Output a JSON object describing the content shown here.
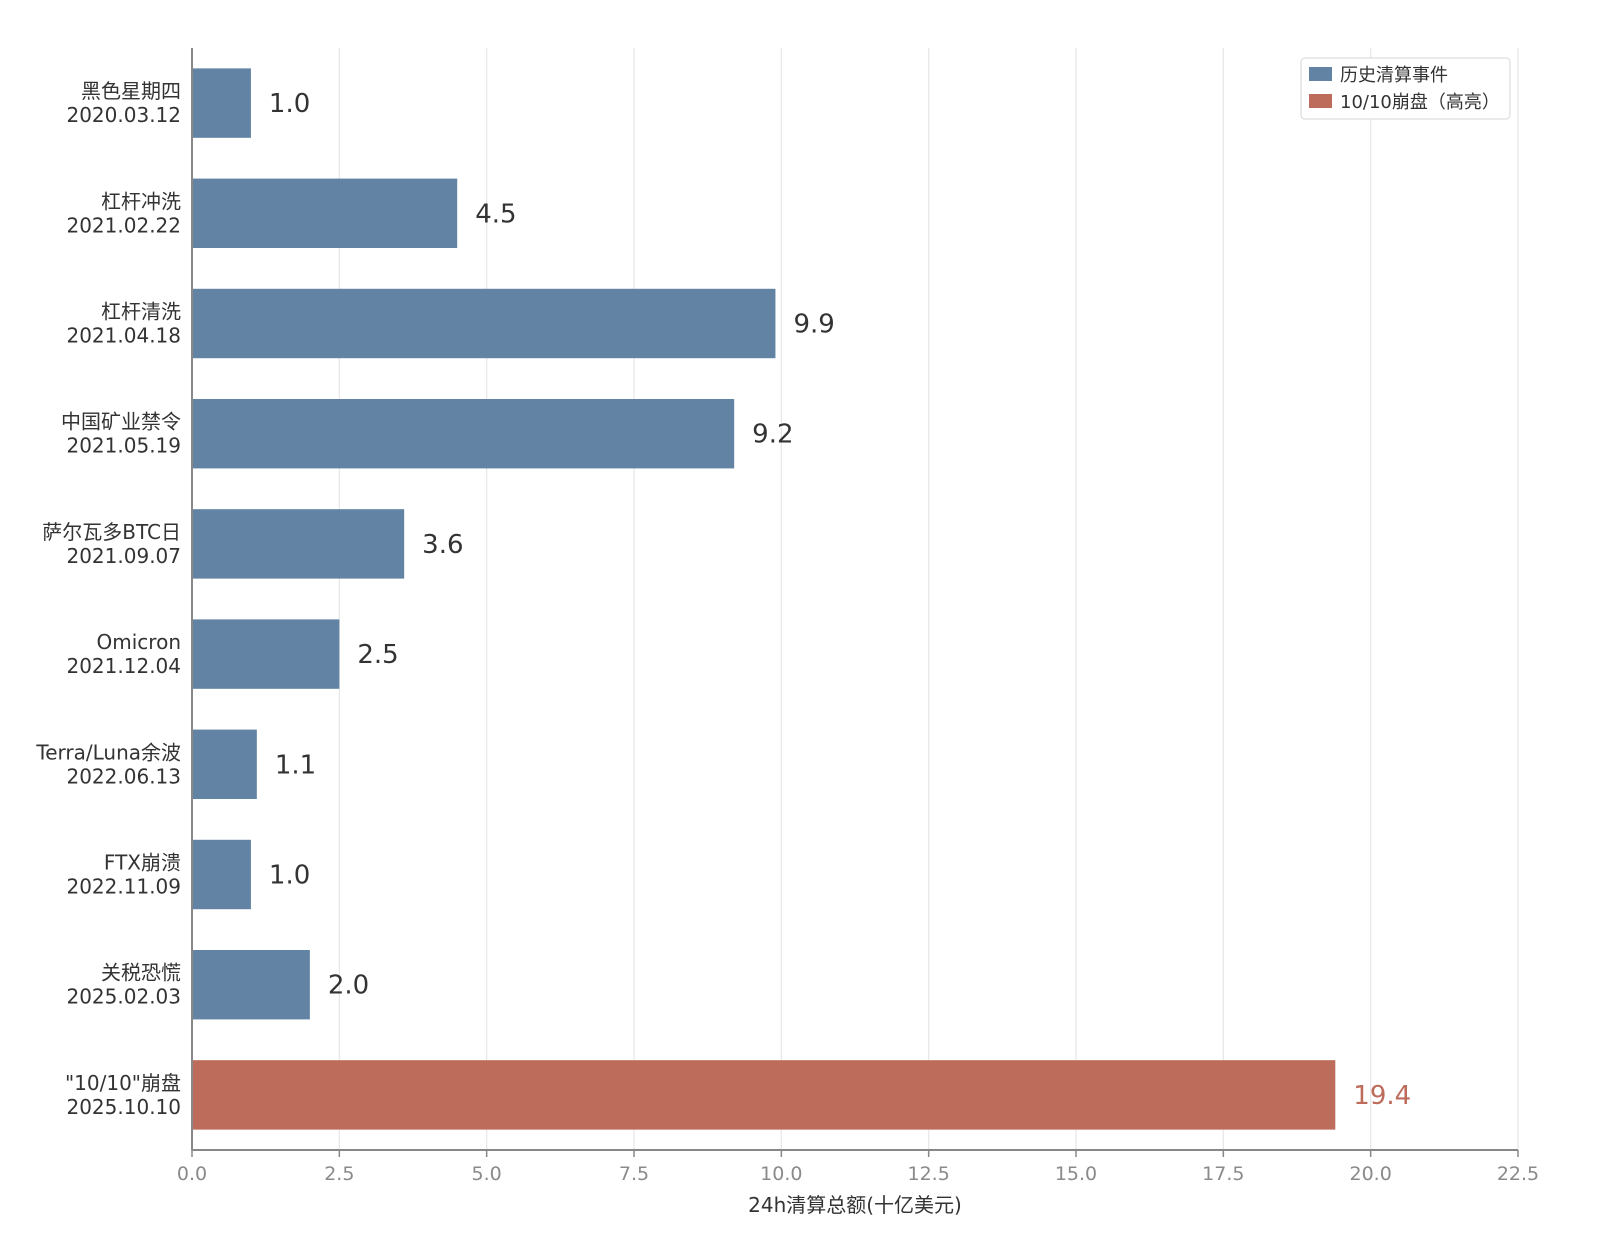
{
  "chart_data": {
    "type": "bar",
    "orientation": "horizontal",
    "categories": [
      {
        "name": "黑色星期四",
        "date": "2020.03.12"
      },
      {
        "name": "杠杆冲洗",
        "date": "2021.02.22"
      },
      {
        "name": "杠杆清洗",
        "date": "2021.04.18"
      },
      {
        "name": "中国矿业禁令",
        "date": "2021.05.19"
      },
      {
        "name": "萨尔瓦多BTC日",
        "date": "2021.09.07"
      },
      {
        "name": "Omicron",
        "date": "2021.12.04"
      },
      {
        "name": "Terra/Luna余波",
        "date": "2022.06.13"
      },
      {
        "name": "FTX崩溃",
        "date": "2022.11.09"
      },
      {
        "name": "关税恐慌",
        "date": "2025.02.03"
      },
      {
        "name": "\"10/10\"崩盘",
        "date": "2025.10.10"
      }
    ],
    "values": [
      1.0,
      4.5,
      9.9,
      9.2,
      3.6,
      2.5,
      1.1,
      1.0,
      2.0,
      19.4
    ],
    "value_labels": [
      "1.0",
      "4.5",
      "9.9",
      "9.2",
      "3.6",
      "2.5",
      "1.1",
      "1.0",
      "2.0",
      "19.4"
    ],
    "series_membership": [
      0,
      0,
      0,
      0,
      0,
      0,
      0,
      0,
      0,
      1
    ],
    "series": [
      {
        "name": "历史清算事件",
        "color": "#6283a4"
      },
      {
        "name": "10/10崩盘（高亮）",
        "color": "#bd6b5a"
      }
    ],
    "xlabel": "24h清算总额(十亿美元)",
    "ylabel": "",
    "xlim": [
      0,
      22.5
    ],
    "xticks": [
      "0.0",
      "2.5",
      "5.0",
      "7.5",
      "10.0",
      "12.5",
      "15.0",
      "17.5",
      "20.0",
      "22.5"
    ],
    "grid": "vertical",
    "legend": "top-right",
    "colors": {
      "axis": "#888888",
      "grid": "#e6e6e6",
      "label": "#333333",
      "tick": "#8a8a8a"
    }
  }
}
